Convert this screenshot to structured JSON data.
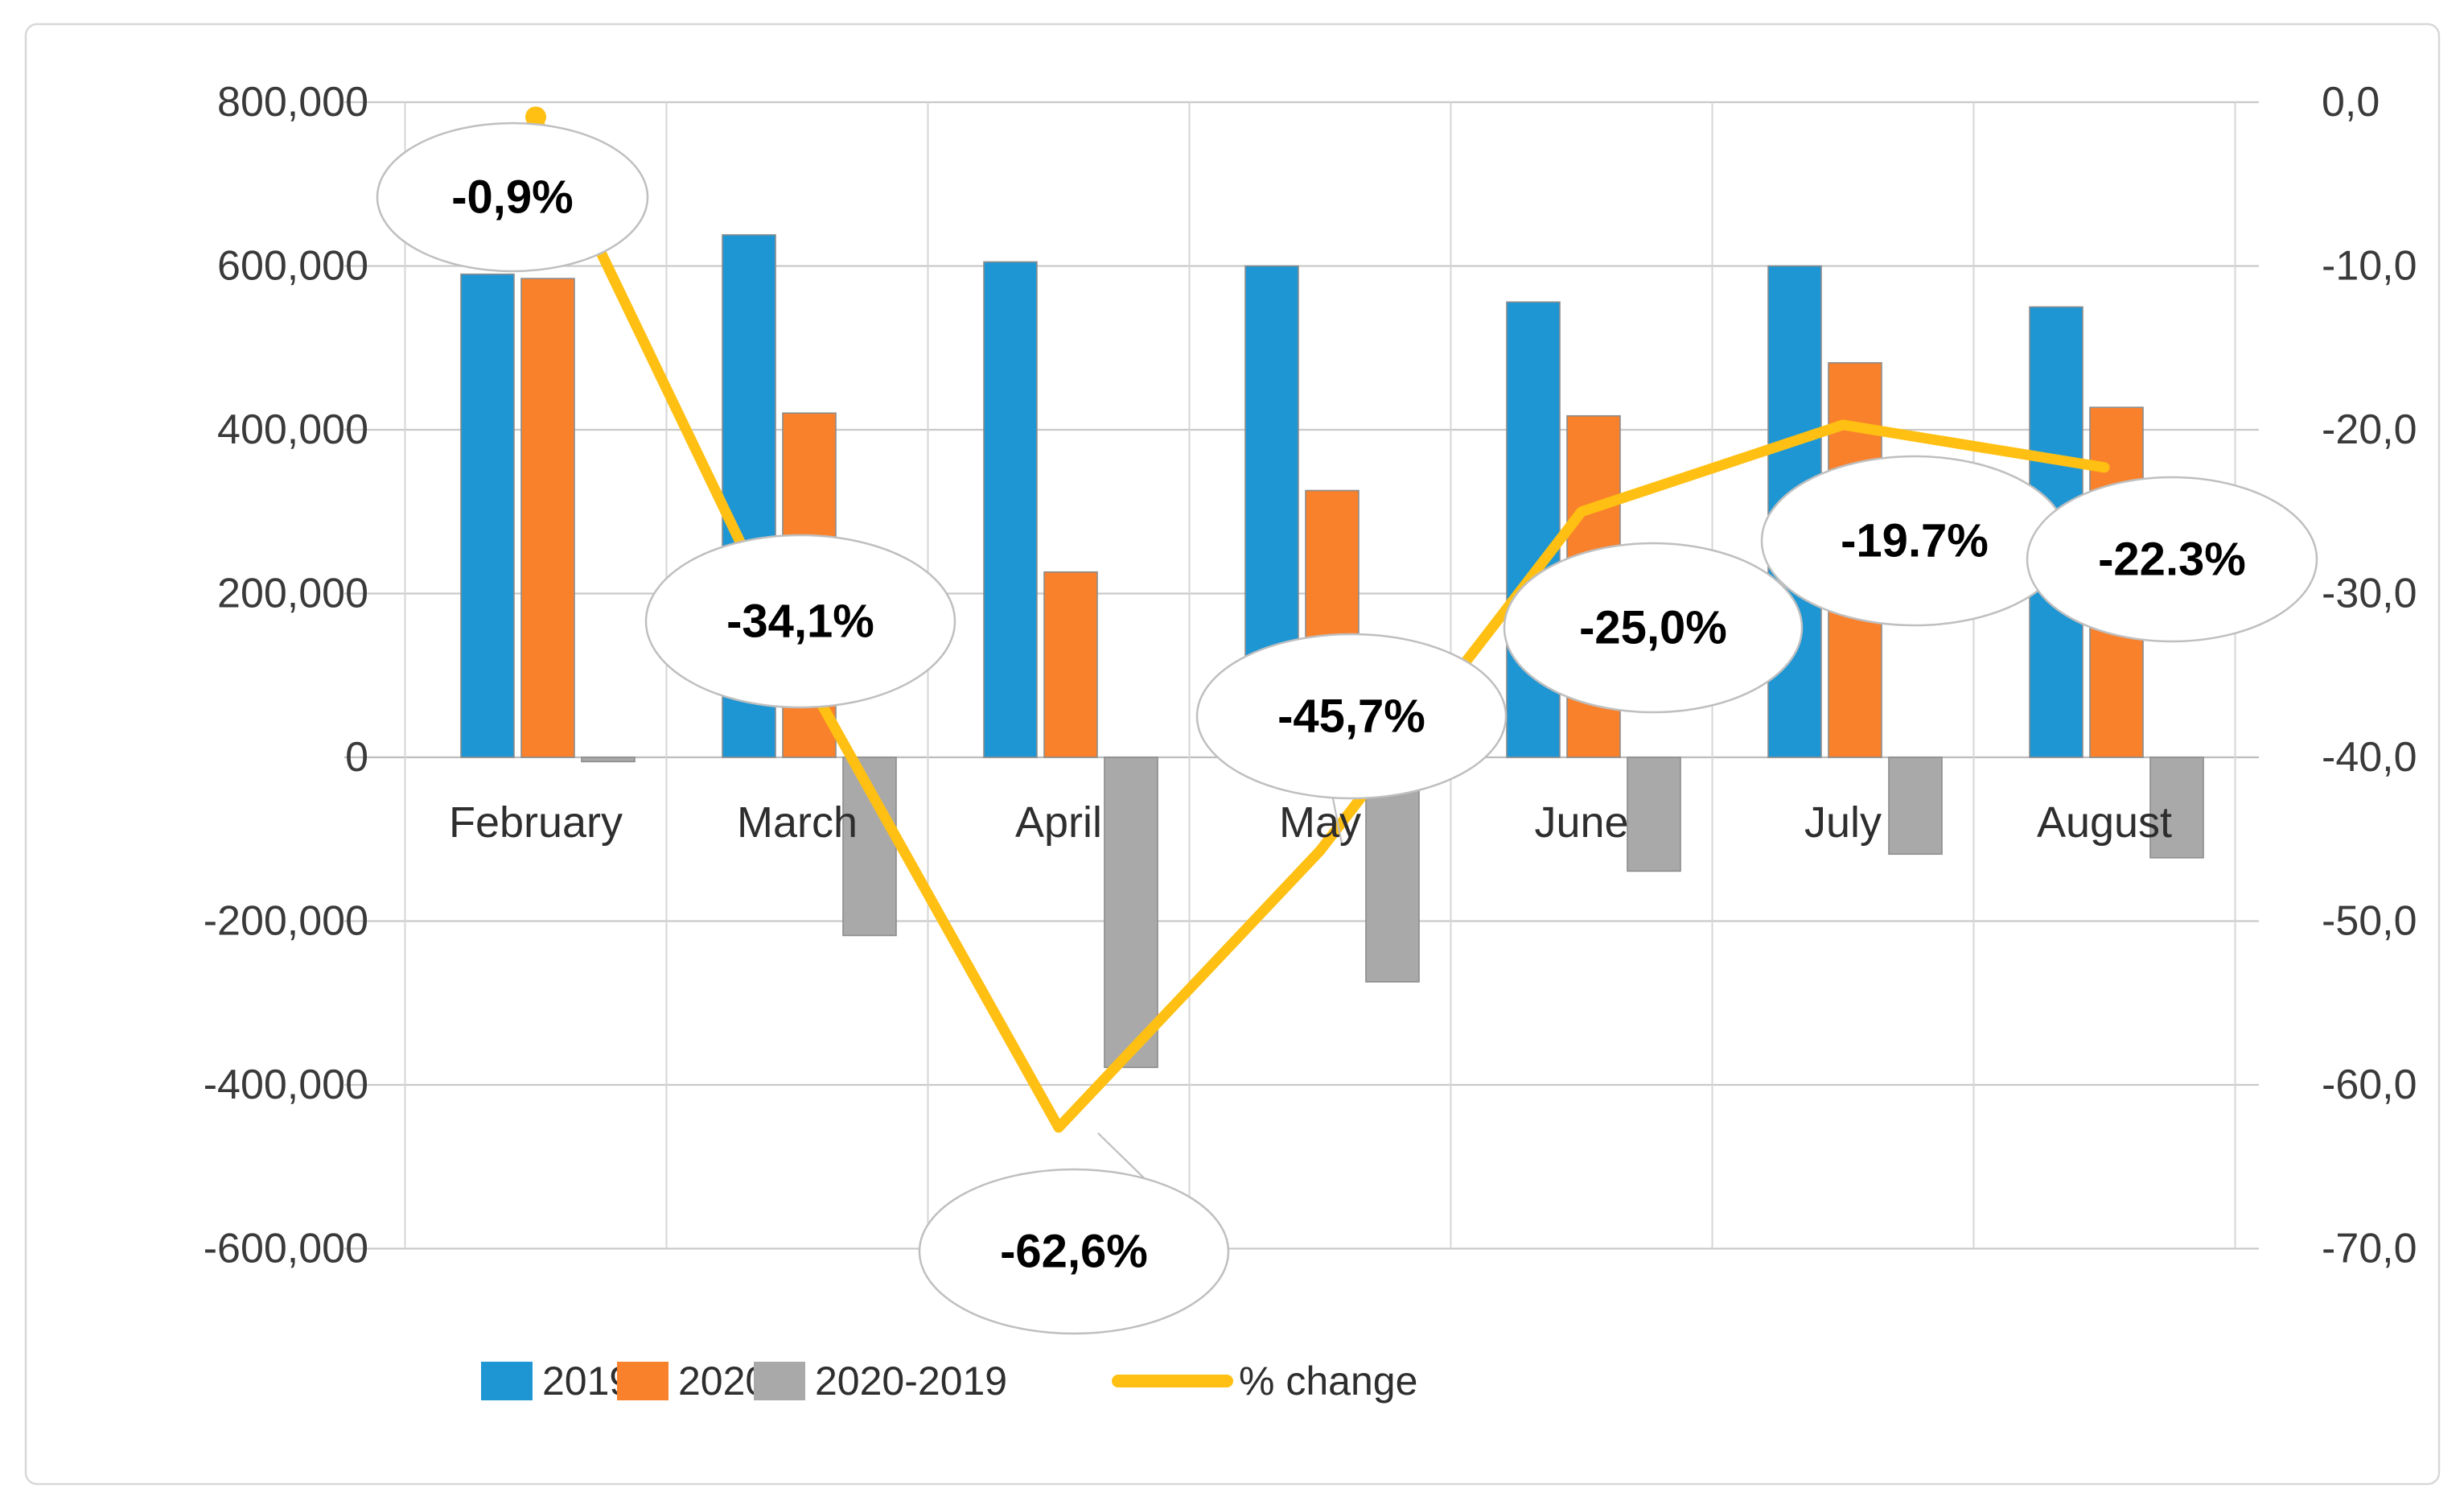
{
  "chart_data": {
    "type": "combo-bar-line",
    "categories": [
      "February",
      "March",
      "April",
      "May",
      "June",
      "July",
      "August"
    ],
    "series": [
      {
        "name": "2019",
        "chart_type": "bar",
        "axis": "left",
        "color": "#1E96D4",
        "values": [
          590000,
          638000,
          605000,
          600000,
          556000,
          600000,
          550000
        ]
      },
      {
        "name": "2020",
        "chart_type": "bar",
        "axis": "left",
        "color": "#F9812B",
        "values": [
          584700,
          420400,
          226300,
          325800,
          417000,
          481800,
          427350
        ]
      },
      {
        "name": "2020-2019",
        "chart_type": "bar",
        "axis": "left",
        "color": "#A9A9A9",
        "values": [
          -5300,
          -217600,
          -378700,
          -274200,
          -139000,
          -118200,
          -122650
        ]
      },
      {
        "name": "% change",
        "chart_type": "line",
        "axis": "right",
        "color": "#FFC013",
        "values": [
          -0.9,
          -34.1,
          -62.6,
          -45.7,
          -25.0,
          -19.7,
          -22.3
        ]
      }
    ],
    "point_labels": [
      "-0,9%",
      "-34,1%",
      "-62,6%",
      "-45,7%",
      "-25,0%",
      "-19.7%",
      "-22.3%"
    ],
    "left_axis": {
      "max": 800000,
      "min": -600000,
      "step": 200000,
      "tick_labels": [
        "800,000",
        "600,000",
        "400,000",
        "200,000",
        "0",
        "-200,000",
        "-400,000",
        "-600,000"
      ]
    },
    "right_axis": {
      "max": 0,
      "min": -70,
      "step": 10,
      "tick_labels": [
        "0,0",
        "-10,0",
        "-20,0",
        "-30,0",
        "-40,0",
        "-50,0",
        "-60,0",
        "-70,0"
      ]
    },
    "legend": {
      "position": "bottom",
      "entries": [
        {
          "label": "2019",
          "marker": "square",
          "color": "#1E96D4"
        },
        {
          "label": "2020",
          "marker": "square",
          "color": "#F9812B"
        },
        {
          "label": "2020-2019",
          "marker": "square",
          "color": "#A9A9A9"
        },
        {
          "label": "% change",
          "marker": "line",
          "color": "#FFC013"
        }
      ]
    },
    "grid": true,
    "colors": {
      "gridline": "#C9C9C9",
      "vertical_gridline": "#D6D6D6",
      "axis_line": "#BDBDBD",
      "bar_border": "#8C8C8C",
      "text": "#3A3A3A",
      "callout_border": "#BFBFBF",
      "callout_fill": "#FFFFFF",
      "chart_border": "#D8D8D8",
      "background": "#FFFFFF"
    }
  }
}
